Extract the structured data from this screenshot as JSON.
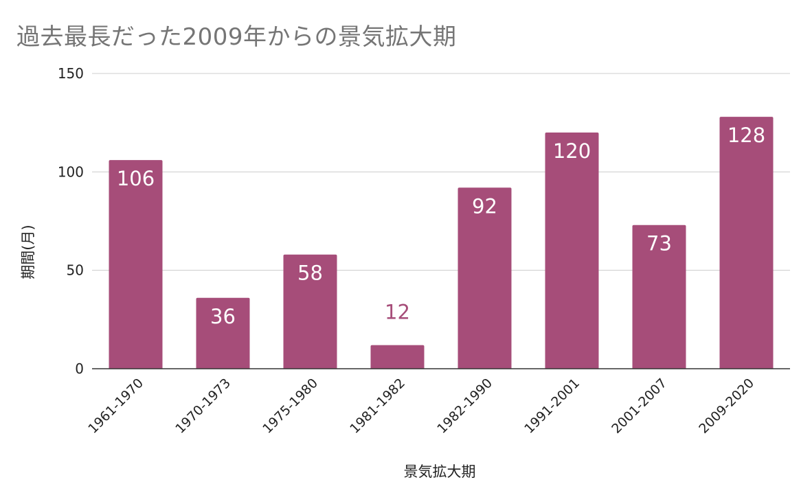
{
  "chart_data": {
    "type": "bar",
    "title": "過去最長だった2009年からの景気拡大期",
    "xlabel": "景気拡大期",
    "ylabel": "期間(月)",
    "categories": [
      "1961-1970",
      "1970-1973",
      "1975-1980",
      "1981-1982",
      "1982-1990",
      "1991-2001",
      "2001-2007",
      "2009-2020"
    ],
    "values": [
      106,
      36,
      58,
      12,
      92,
      120,
      73,
      128
    ],
    "ylim": [
      0,
      150
    ],
    "yticks": [
      0,
      50,
      100,
      150
    ],
    "grid": true,
    "bar_color": "#a64d79",
    "grid_color": "#cccccc"
  }
}
